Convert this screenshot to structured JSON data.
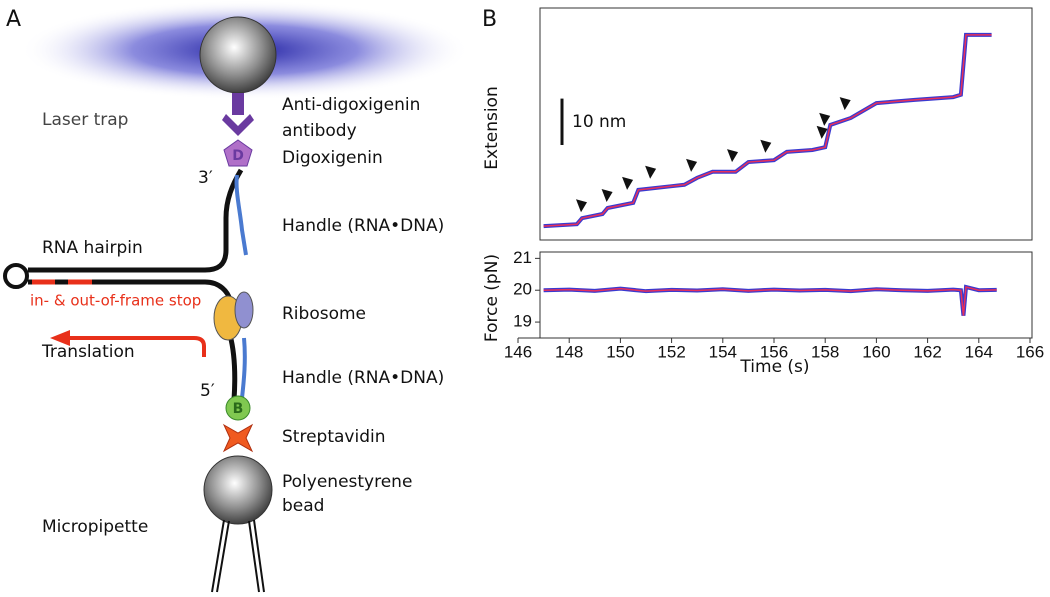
{
  "panel_a": {
    "label": "A",
    "laser_trap": "Laser trap",
    "antibody_1": "Anti-digoxigenin",
    "antibody_2": "antibody",
    "digoxigenin": "Digoxigenin",
    "digoxigenin_symbol": "D",
    "end_3": "3′",
    "handle_top": "Handle (RNA•DNA)",
    "hairpin": "RNA hairpin",
    "stop": "in- & out-of-frame stop",
    "ribosome": "Ribosome",
    "translation": "Translation",
    "end_5": "5′",
    "handle_bottom": "Handle (RNA•DNA)",
    "biotin_symbol": "B",
    "streptavidin": "Streptavidin",
    "bead_1": "Polyenestyrene",
    "bead_2": "bead",
    "micropipette": "Micropipette"
  },
  "panel_b": {
    "label": "B"
  },
  "chart_data": [
    {
      "type": "line",
      "ylabel": "Extension",
      "xlim": [
        146,
        166
      ],
      "ylim": [
        0,
        50
      ],
      "scale_bar": {
        "value": 10,
        "label": "10 nm"
      },
      "x": [
        147,
        148.3,
        148.5,
        149.3,
        149.5,
        150.5,
        150.7,
        152,
        152.5,
        153,
        153.6,
        154.5,
        155,
        156,
        156.5,
        157.5,
        158,
        158.2,
        159,
        160,
        161.5,
        163,
        163.3,
        163.5,
        164.5
      ],
      "series": [
        {
          "color": "#e8305a",
          "outline_color": "#3a3ad0",
          "values": [
            3.0,
            3.4,
            4.7,
            5.6,
            6.9,
            8.0,
            10.8,
            11.6,
            11.9,
            13.4,
            14.7,
            14.7,
            16.8,
            17.2,
            19.0,
            19.4,
            20.0,
            24.8,
            26.3,
            29.5,
            30.2,
            30.8,
            31.3,
            44.2,
            44.2
          ]
        }
      ],
      "step_markers": {
        "x": [
          148.5,
          149.5,
          150.3,
          151.2,
          152.8,
          154.4,
          155.7,
          157.9,
          158.0,
          158.8
        ],
        "y": [
          7.5,
          9.7,
          12.3,
          14.7,
          16.2,
          18.3,
          20.3,
          23.3,
          26.1,
          29.5
        ]
      }
    },
    {
      "type": "line",
      "ylabel": "Force (pN)",
      "xlabel": "Time (s)",
      "xlim": [
        146,
        166
      ],
      "ylim": [
        18.5,
        21.2
      ],
      "xticks": [
        146,
        148,
        150,
        152,
        154,
        156,
        158,
        160,
        162,
        164,
        166
      ],
      "yticks": [
        19,
        20,
        21
      ],
      "x": [
        147,
        148,
        149,
        150,
        151,
        152,
        153,
        154,
        155,
        156,
        157,
        158,
        159,
        160,
        161,
        162,
        163,
        163.3,
        163.4,
        163.5,
        164,
        164.7
      ],
      "series": [
        {
          "color": "#e8305a",
          "outline_color": "#3a3ad0",
          "values": [
            20,
            20.02,
            19.98,
            20.05,
            19.97,
            20.01,
            19.99,
            20.03,
            19.98,
            20.02,
            19.99,
            20.01,
            19.97,
            20.03,
            20,
            19.98,
            20.02,
            20,
            19.2,
            20.1,
            20,
            20.01
          ]
        }
      ]
    }
  ]
}
